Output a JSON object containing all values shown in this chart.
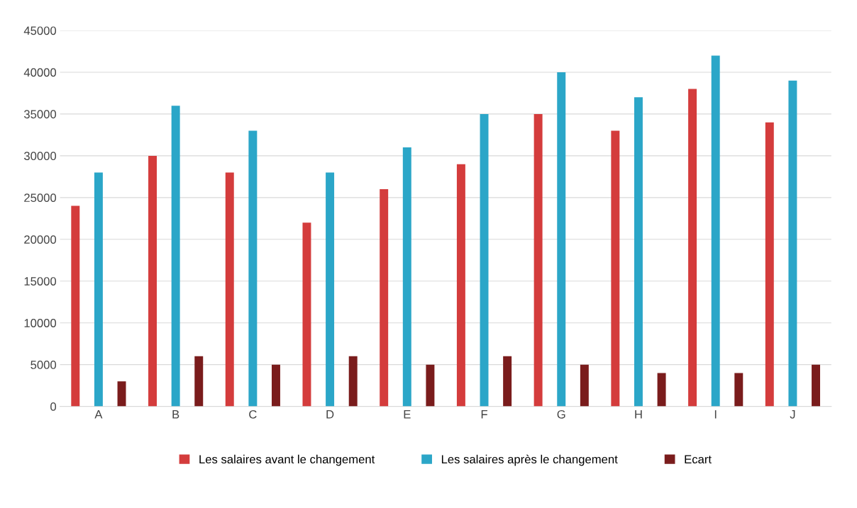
{
  "chart_data": {
    "type": "bar",
    "categories": [
      "A",
      "B",
      "C",
      "D",
      "E",
      "F",
      "G",
      "H",
      "I",
      "J"
    ],
    "series": [
      {
        "name": "Les salaires avant le changement",
        "color": "#d43c3c",
        "values": [
          24000,
          30000,
          28000,
          22000,
          26000,
          29000,
          35000,
          33000,
          38000,
          34000
        ]
      },
      {
        "name": "Les salaires après le changement",
        "color": "#2ba6c8",
        "values": [
          28000,
          36000,
          33000,
          28000,
          31000,
          35000,
          40000,
          37000,
          42000,
          39000
        ]
      },
      {
        "name": "Ecart",
        "color": "#7a1c1c",
        "values": [
          3000,
          6000,
          5000,
          6000,
          5000,
          6000,
          5000,
          4000,
          4000,
          5000
        ]
      }
    ],
    "ylim": [
      0,
      45000
    ],
    "yticks": [
      0,
      5000,
      10000,
      15000,
      20000,
      25000,
      30000,
      35000,
      40000,
      45000
    ],
    "grid": "y",
    "legend": "bottom"
  }
}
